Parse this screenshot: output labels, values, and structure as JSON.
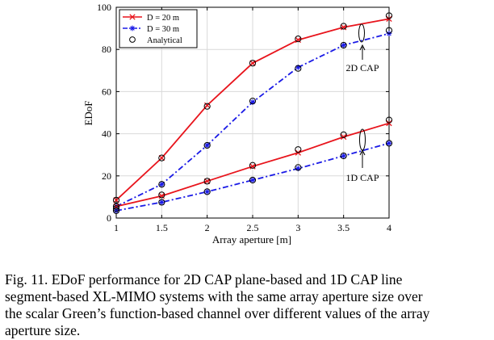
{
  "chart_data": {
    "type": "line",
    "xlabel": "Array aperture [m]",
    "ylabel": "EDoF",
    "xlim": [
      1,
      4
    ],
    "ylim": [
      0,
      100
    ],
    "x_ticks": [
      "1",
      "1.5",
      "2",
      "2.5",
      "3",
      "3.5",
      "4"
    ],
    "y_ticks": [
      "0",
      "20",
      "40",
      "60",
      "80",
      "100"
    ],
    "grid": true,
    "legend": {
      "placement": "top-left",
      "entries": [
        "D = 20 m",
        "D = 30 m",
        "Analytical"
      ]
    },
    "x": [
      1,
      1.5,
      2,
      2.5,
      3,
      3.5,
      4
    ],
    "series": [
      {
        "name": "D = 20 m",
        "group": "2D CAP",
        "color": "#e8141c",
        "style": "solid",
        "marker": "x",
        "values": [
          8.5,
          28.5,
          53.5,
          73.5,
          84.5,
          90.5,
          94.5
        ]
      },
      {
        "name": "D = 30 m",
        "group": "2D CAP",
        "color": "#1a1ae6",
        "style": "dashdot",
        "marker": "*",
        "values": [
          5.5,
          16,
          34.5,
          55,
          71.5,
          82,
          87.5
        ]
      },
      {
        "name": "D = 20 m",
        "group": "1D CAP",
        "color": "#e8141c",
        "style": "solid",
        "marker": "x",
        "values": [
          5.5,
          10.5,
          17.5,
          24.5,
          31,
          38.5,
          45
        ]
      },
      {
        "name": "D = 30 m",
        "group": "1D CAP",
        "color": "#1a1ae6",
        "style": "dashdot",
        "marker": "*",
        "values": [
          3.5,
          7.5,
          12.5,
          18,
          23.5,
          29.5,
          35.5
        ]
      }
    ],
    "analytical": [
      [
        8.5,
        28.5,
        53,
        73.5,
        85,
        91,
        96
      ],
      [
        4.5,
        16,
        34.5,
        55.5,
        71,
        82,
        89
      ],
      [
        5.5,
        11,
        17.5,
        25,
        32.5,
        39.5,
        46.5
      ],
      [
        3.5,
        7.5,
        12.5,
        18,
        24,
        29.5,
        35.5
      ]
    ],
    "annotations": [
      {
        "text": "2D CAP"
      },
      {
        "text": "1D CAP"
      }
    ]
  },
  "caption": {
    "lines": [
      "Fig. 11.   EDoF performance for 2D CAP plane-based and 1D CAP line",
      "segment-based XL-MIMO systems with the same array aperture size over",
      "the scalar Green’s function-based channel over different values of the array",
      "aperture size."
    ]
  }
}
